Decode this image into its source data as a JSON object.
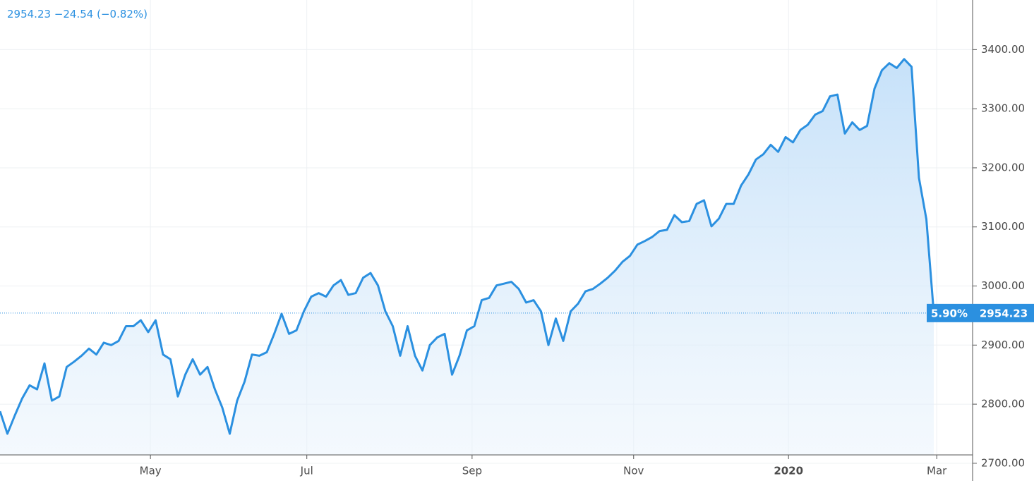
{
  "chart_data": {
    "type": "area",
    "header": {
      "change": "−24.54",
      "change_pct": "(−0.82%)"
    },
    "badge_label": "5.90%",
    "color": "#2b90e0",
    "values": [
      2788,
      2750,
      2781,
      2810,
      2832,
      2825,
      2869,
      2806,
      2813,
      2863,
      2872,
      2882,
      2894,
      2884,
      2904,
      2900,
      2907,
      2932,
      2932,
      2942,
      2922,
      2942,
      2884,
      2876,
      2813,
      2850,
      2876,
      2850,
      2863,
      2825,
      2794,
      2750,
      2806,
      2838,
      2884,
      2882,
      2888,
      2919,
      2953,
      2919,
      2925,
      2957,
      2982,
      2988,
      2982,
      3001,
      3010,
      2985,
      2988,
      3014,
      3022,
      3001,
      2957,
      2932,
      2882,
      2932,
      2882,
      2857,
      2900,
      2913,
      2919,
      2850,
      2882,
      2925,
      2932,
      2976,
      2980,
      3001,
      3004,
      3007,
      2995,
      2972,
      2976,
      2957,
      2900,
      2945,
      2907,
      2957,
      2970,
      2991,
      2995,
      3004,
      3014,
      3026,
      3041,
      3051,
      3070,
      3076,
      3083,
      3093,
      3095,
      3120,
      3108,
      3110,
      3139,
      3145,
      3101,
      3114,
      3139,
      3139,
      3170,
      3189,
      3214,
      3223,
      3239,
      3227,
      3252,
      3243,
      3264,
      3273,
      3290,
      3296,
      3321,
      3324,
      3258,
      3277,
      3264,
      3271,
      3334,
      3365,
      3377,
      3369,
      3384,
      3371,
      3183,
      3113,
      2954.23
    ],
    "ylim": [
      2670,
      3484
    ],
    "yticks": [
      {
        "value": 2700,
        "label": "2700.00"
      },
      {
        "value": 2800,
        "label": "2800.00"
      },
      {
        "value": 2900,
        "label": "2900.00"
      },
      {
        "value": 3000,
        "label": "3000.00"
      },
      {
        "value": 3100,
        "label": "3100.00"
      },
      {
        "value": 3200,
        "label": "3200.00"
      },
      {
        "value": 3300,
        "label": "3300.00"
      },
      {
        "value": 3400,
        "label": "3400.00"
      }
    ],
    "xticks": [
      {
        "value": 20.3,
        "label": "May"
      },
      {
        "value": 41.4,
        "label": "Jul"
      },
      {
        "value": 63.7,
        "label": "Sep"
      },
      {
        "value": 85.5,
        "label": "Nov"
      },
      {
        "value": 106.4,
        "label": "2020"
      },
      {
        "value": 126.4,
        "label": "Mar"
      }
    ],
    "grid": true
  }
}
